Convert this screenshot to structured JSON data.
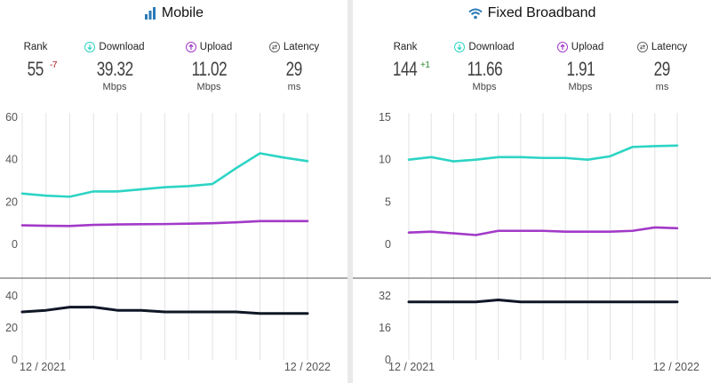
{
  "panels": [
    {
      "title": "Mobile",
      "icon": "signal-bars-icon",
      "rank": {
        "label": "Rank",
        "value": "55",
        "change": "-7"
      },
      "download": {
        "label": "Download",
        "value": "39.32",
        "unit": "Mbps"
      },
      "upload": {
        "label": "Upload",
        "value": "11.02",
        "unit": "Mbps"
      },
      "latency": {
        "label": "Latency",
        "value": "29",
        "unit": "ms"
      },
      "date_start": "12 / 2021",
      "date_end": "12 / 2022"
    },
    {
      "title": "Fixed Broadband",
      "icon": "wifi-icon",
      "rank": {
        "label": "Rank",
        "value": "144",
        "change": "+1"
      },
      "download": {
        "label": "Download",
        "value": "11.66",
        "unit": "Mbps"
      },
      "upload": {
        "label": "Upload",
        "value": "1.91",
        "unit": "Mbps"
      },
      "latency": {
        "label": "Latency",
        "value": "29",
        "unit": "ms"
      },
      "date_start": "12 / 2021",
      "date_end": "12 / 2022"
    }
  ],
  "colors": {
    "download": "#2dd4c4",
    "upload": "#a23ac8",
    "latency": "#0f1626",
    "rank_down": "#b0171f",
    "rank_up": "#2d8a2d"
  },
  "chart_data": [
    {
      "type": "line",
      "x": [
        "12/2021",
        "01/2022",
        "02/2022",
        "03/2022",
        "04/2022",
        "05/2022",
        "06/2022",
        "07/2022",
        "08/2022",
        "09/2022",
        "10/2022",
        "11/2022",
        "12/2022"
      ],
      "speed": {
        "ylim": [
          0,
          60
        ],
        "yticks": [
          "60",
          "40",
          "20",
          "0"
        ],
        "yticks_values": [
          60,
          40,
          20,
          0
        ],
        "series": [
          {
            "name": "Download",
            "values": [
              24,
              23,
              22.5,
              25,
              25,
              26,
              27,
              27.5,
              28.5,
              36,
              43,
              41,
              39.3
            ]
          },
          {
            "name": "Upload",
            "values": [
              9,
              8.8,
              8.7,
              9.2,
              9.4,
              9.5,
              9.6,
              9.8,
              10,
              10.4,
              11,
              11,
              11
            ]
          }
        ]
      },
      "latency": {
        "ylim": [
          0,
          40
        ],
        "yticks": [
          "40",
          "20",
          "0"
        ],
        "yticks_values": [
          40,
          20,
          0
        ],
        "series": [
          {
            "name": "Latency",
            "values": [
              30,
              31,
              33,
              33,
              31,
              31,
              30,
              30,
              30,
              30,
              29,
              29,
              29
            ]
          }
        ]
      }
    },
    {
      "type": "line",
      "x": [
        "12/2021",
        "01/2022",
        "02/2022",
        "03/2022",
        "04/2022",
        "05/2022",
        "06/2022",
        "07/2022",
        "08/2022",
        "09/2022",
        "10/2022",
        "11/2022",
        "12/2022"
      ],
      "speed": {
        "ylim": [
          0,
          15
        ],
        "yticks": [
          "15",
          "10",
          "5",
          "0"
        ],
        "yticks_values": [
          15,
          10,
          5,
          0
        ],
        "series": [
          {
            "name": "Download",
            "values": [
              10,
              10.3,
              9.8,
              10,
              10.3,
              10.3,
              10.2,
              10.2,
              10,
              10.4,
              11.5,
              11.6,
              11.66
            ]
          },
          {
            "name": "Upload",
            "values": [
              1.4,
              1.5,
              1.3,
              1.1,
              1.6,
              1.6,
              1.6,
              1.5,
              1.5,
              1.5,
              1.6,
              2.0,
              1.91
            ]
          }
        ]
      },
      "latency": {
        "ylim": [
          0,
          32
        ],
        "yticks": [
          "32",
          "16",
          "0"
        ],
        "yticks_values": [
          32,
          16,
          0
        ],
        "series": [
          {
            "name": "Latency",
            "values": [
              29,
              29,
              29,
              29,
              30,
              29,
              29,
              29,
              29,
              29,
              29,
              29,
              29
            ]
          }
        ]
      }
    }
  ]
}
